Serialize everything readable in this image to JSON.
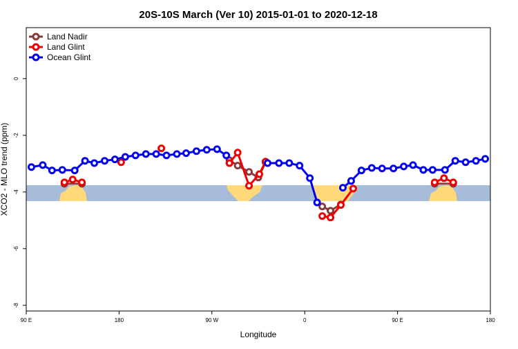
{
  "chart_data": {
    "type": "line",
    "title": "20S-10S March (Ver 10)   2015-01-01 to 2020-12-18",
    "x_label": "Longitude",
    "y_label": "XCO2 - MLO trend (ppm)",
    "xlim": [
      90,
      540
    ],
    "ylim": [
      -8.2,
      1.8
    ],
    "xticks": [
      {
        "value": 90,
        "label": "90 E"
      },
      180,
      {
        "value": 270,
        "label": "90 W"
      },
      {
        "value": 360,
        "label": "0"
      },
      {
        "value": 450,
        "label": "90 E"
      },
      {
        "value": 540,
        "label": "180"
      }
    ],
    "yticks": [
      0,
      -2,
      -4,
      -6,
      -8
    ],
    "legend": "top-left",
    "series": [
      {
        "name": "Land Nadir",
        "color": "#8b3a3a",
        "x": [
          127,
          144,
          null,
          287,
          295,
          306,
          315,
          322,
          null,
          377,
          385,
          395,
          null,
          486,
          504
        ],
        "values": [
          -3.71,
          -3.71,
          null,
          -2.88,
          -3.07,
          -3.29,
          -3.49,
          -2.95,
          null,
          -4.51,
          -4.66,
          -4.44,
          null,
          -3.71,
          -3.71
        ]
      },
      {
        "name": "Land Glint",
        "color": "#ee0000",
        "x": [
          127,
          135,
          144,
          null,
          182,
          null,
          221,
          null,
          287,
          295,
          306,
          316,
          322,
          null,
          377,
          385,
          395,
          407,
          null,
          486,
          495,
          504
        ],
        "values": [
          -3.66,
          -3.56,
          -3.66,
          null,
          -2.95,
          null,
          -2.46,
          null,
          -2.98,
          -2.61,
          -3.78,
          -3.37,
          -2.93,
          null,
          -4.85,
          -4.9,
          -4.46,
          -3.88,
          null,
          -3.66,
          -3.51,
          -3.66
        ]
      },
      {
        "name": "Ocean Glint",
        "color": "#0000ee",
        "x": [
          95,
          106,
          115,
          125,
          137,
          147,
          156,
          166,
          176,
          186,
          196,
          206,
          216,
          226,
          236,
          245,
          255,
          265,
          275,
          284,
          null,
          324,
          335,
          345,
          355,
          365,
          372,
          null,
          397,
          405,
          415,
          425,
          435,
          446,
          456,
          465,
          475,
          484,
          496,
          506,
          516,
          526,
          535
        ],
        "values": [
          -3.12,
          -3.05,
          -3.24,
          -3.22,
          -3.24,
          -2.9,
          -2.98,
          -2.9,
          -2.85,
          -2.76,
          -2.71,
          -2.66,
          -2.66,
          -2.71,
          -2.66,
          -2.63,
          -2.56,
          -2.51,
          -2.49,
          -2.71,
          null,
          -2.98,
          -2.98,
          -2.98,
          -3.07,
          -3.51,
          -4.37,
          null,
          -3.85,
          -3.61,
          -3.24,
          -3.15,
          -3.17,
          -3.17,
          -3.1,
          -3.05,
          -3.22,
          -3.22,
          -3.22,
          -2.9,
          -2.95,
          -2.9,
          -2.83
        ]
      }
    ]
  }
}
